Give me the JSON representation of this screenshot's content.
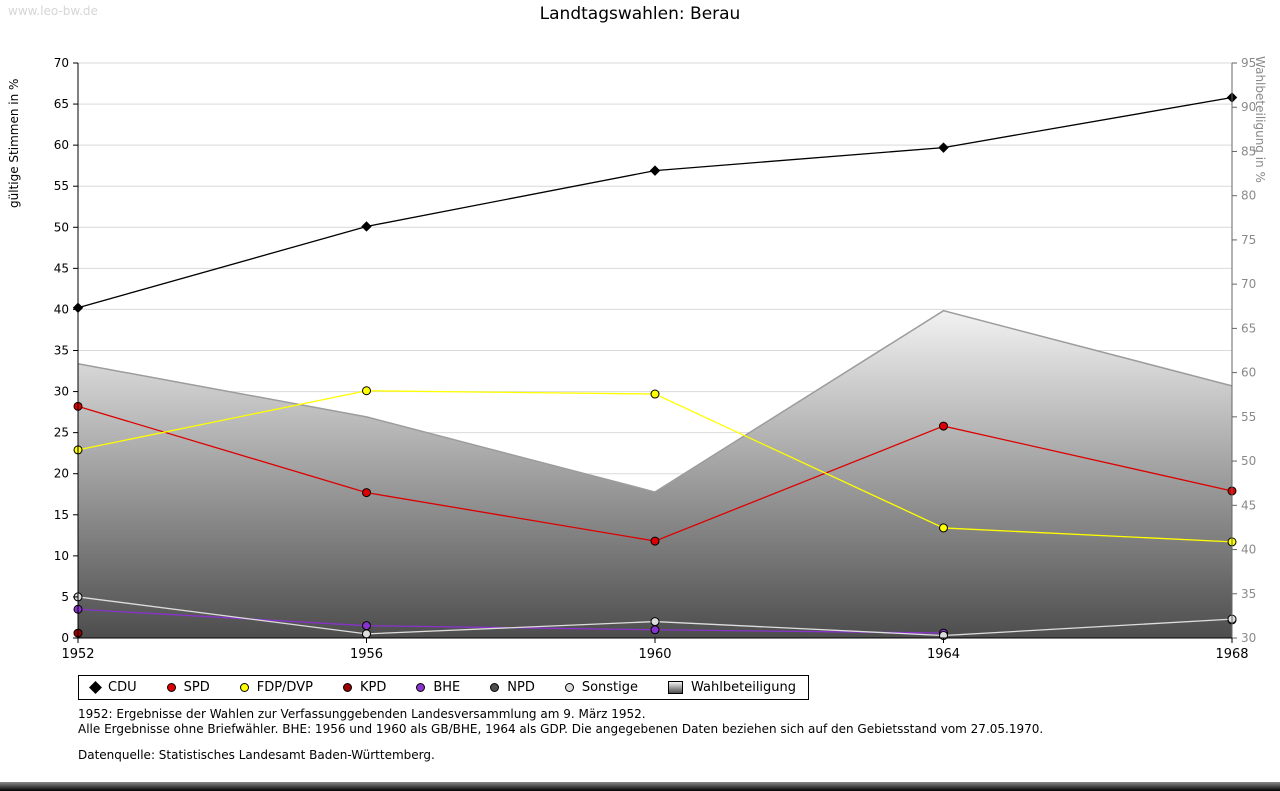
{
  "page": {
    "watermark": "www.leo-bw.de",
    "title": "Landtagswahlen: Berau",
    "footnotes": [
      "1952: Ergebnisse der Wahlen zur Verfassunggebenden Landesversammlung am 9. März 1952.",
      "Alle Ergebnisse ohne Briefwähler. BHE: 1956 und 1960 als GB/BHE, 1964 als GDP. Die angegebenen Daten beziehen sich auf den Gebietsstand vom 27.05.1970."
    ],
    "source": "Datenquelle: Statistisches Landesamt Baden-Württemberg."
  },
  "chart_data": {
    "type": "line",
    "title": "Landtagswahlen: Berau",
    "x": [
      "1952",
      "1956",
      "1960",
      "1964",
      "1968"
    ],
    "ylabel_left": "gültige Stimmen in %",
    "ylabel_right": "Wahlbeteiligung in %",
    "ylim_left": [
      0,
      70
    ],
    "ylim_right": [
      30,
      95
    ],
    "ytick_step": 5,
    "grid": true,
    "legend_position": "bottom",
    "area_gradient": [
      "#f2f2f2",
      "#4d4d4d"
    ],
    "series": [
      {
        "name": "CDU",
        "axis": "left",
        "marker": "diamond",
        "color": "#000000",
        "values": [
          40.2,
          50.1,
          56.9,
          59.7,
          65.8
        ]
      },
      {
        "name": "SPD",
        "axis": "left",
        "marker": "circle",
        "color": "#dd0000",
        "values": [
          28.2,
          17.7,
          11.8,
          25.8,
          17.9
        ]
      },
      {
        "name": "FDP/DVP",
        "axis": "left",
        "marker": "circle",
        "color": "#ffff00",
        "values": [
          22.9,
          30.1,
          29.7,
          13.4,
          11.7
        ]
      },
      {
        "name": "KPD",
        "axis": "left",
        "marker": "circle",
        "color": "#990000",
        "values": [
          0.6,
          null,
          null,
          null,
          null
        ]
      },
      {
        "name": "BHE",
        "axis": "left",
        "marker": "circle",
        "color": "#8833cc",
        "values": [
          3.5,
          1.5,
          1.0,
          0.6,
          null
        ]
      },
      {
        "name": "NPD",
        "axis": "left",
        "marker": "circle",
        "color": "#4d4d4d",
        "values": [
          null,
          null,
          null,
          null,
          2.2
        ]
      },
      {
        "name": "Sonstige",
        "axis": "left",
        "marker": "circle",
        "color": "#dddddd",
        "values": [
          5.0,
          0.5,
          2.0,
          0.3,
          2.3
        ]
      },
      {
        "name": "Wahlbeteiligung",
        "axis": "right",
        "type": "area",
        "color": "#9c9c9c",
        "values": [
          61.0,
          55.0,
          46.5,
          67.0,
          58.5
        ]
      }
    ]
  }
}
